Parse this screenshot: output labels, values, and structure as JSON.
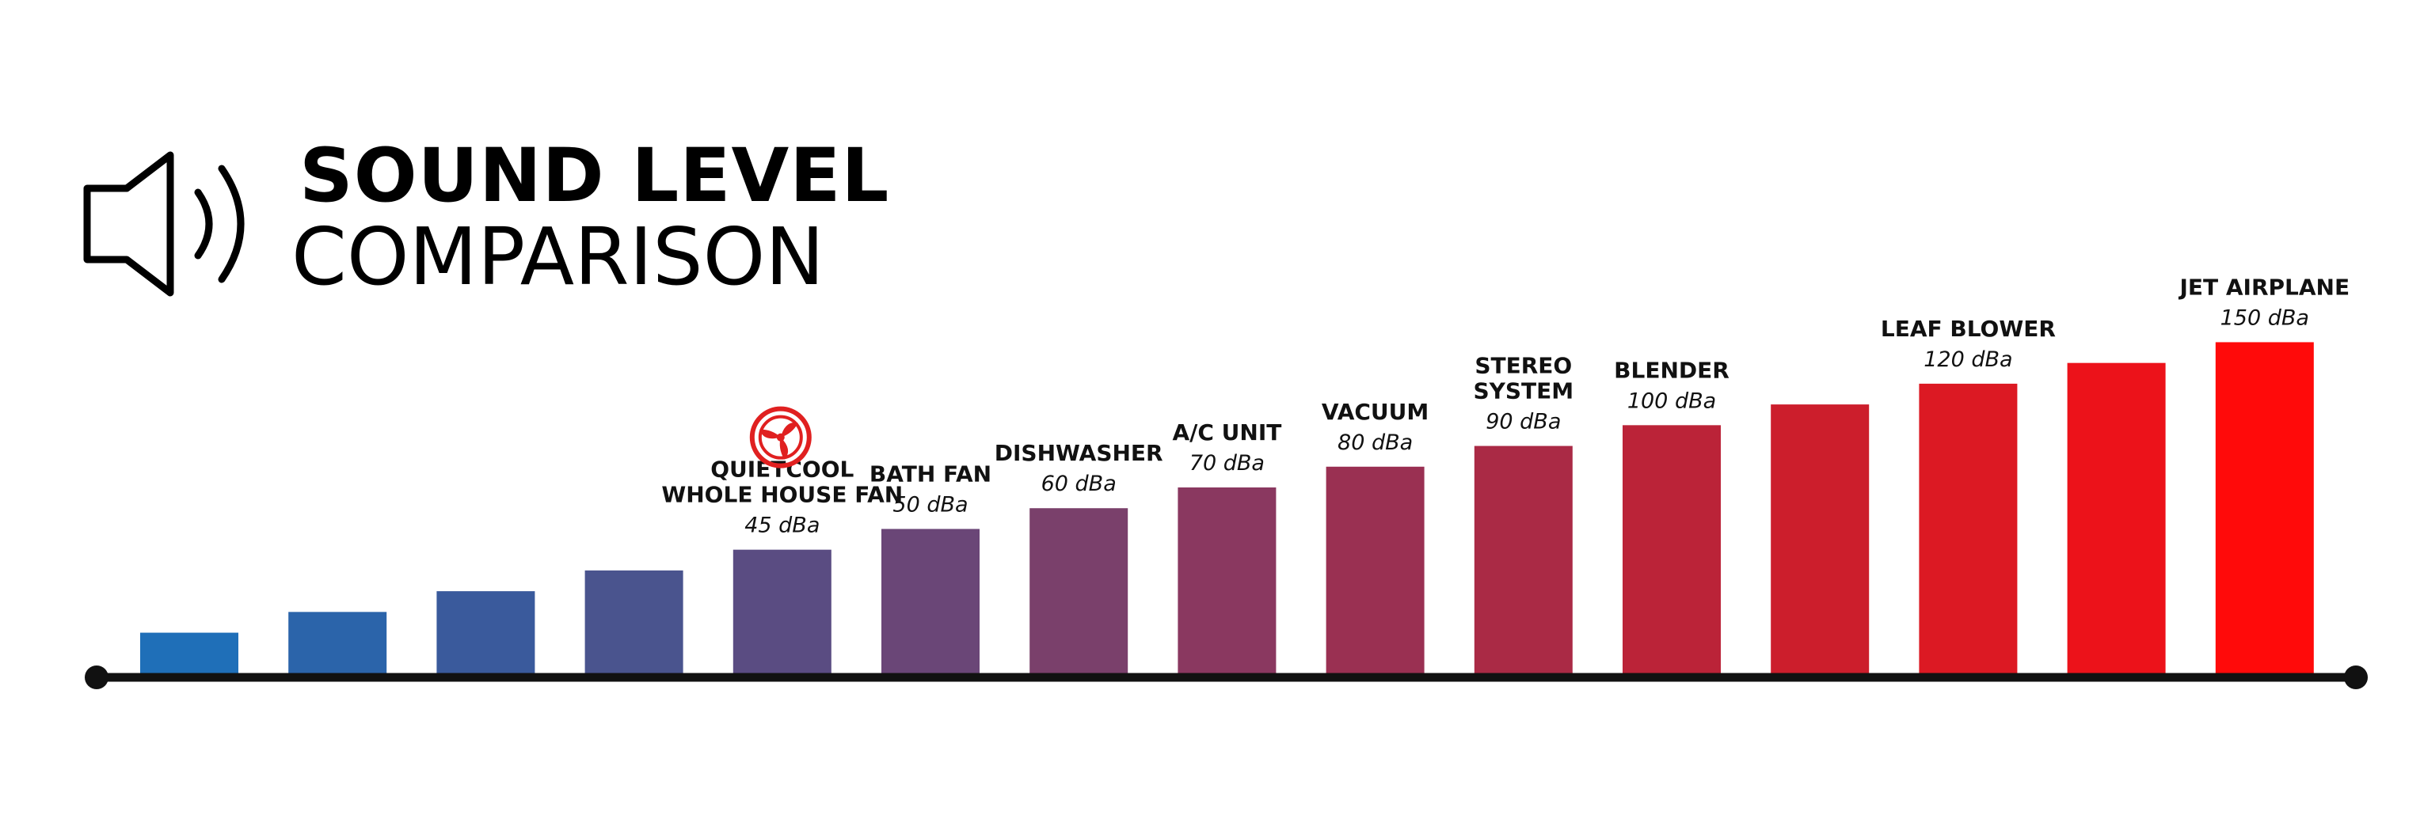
{
  "header": {
    "title_bold": "SOUND LEVEL",
    "title_light": "COMPARISON",
    "icon": "speaker-icon"
  },
  "chart_data": {
    "type": "bar",
    "title": "SOUND LEVEL COMPARISON",
    "xlabel": "",
    "ylabel": "",
    "grid": false,
    "legend": "none",
    "values": [
      10,
      15,
      20,
      25,
      30,
      35,
      40,
      45,
      50,
      55,
      60,
      65,
      70,
      75,
      80
    ],
    "categories": [
      {
        "name": "",
        "value_label": ""
      },
      {
        "name": "",
        "value_label": ""
      },
      {
        "name": "",
        "value_label": ""
      },
      {
        "name": "",
        "value_label": ""
      },
      {
        "name": "QUIETCOOL\nWHOLE HOUSE FAN",
        "value_label": "45 dBa",
        "highlight_icon": "fan-logo-icon"
      },
      {
        "name": "BATH FAN",
        "value_label": "50 dBa"
      },
      {
        "name": "DISHWASHER",
        "value_label": "60 dBa"
      },
      {
        "name": "A/C UNIT",
        "value_label": "70 dBa"
      },
      {
        "name": "VACUUM",
        "value_label": "80 dBa"
      },
      {
        "name": "STEREO\nSYSTEM",
        "value_label": "90 dBa"
      },
      {
        "name": "BLENDER",
        "value_label": "100 dBa"
      },
      {
        "name": "",
        "value_label": ""
      },
      {
        "name": "LEAF BLOWER",
        "value_label": "120 dBa"
      },
      {
        "name": "",
        "value_label": ""
      },
      {
        "name": "JET AIRPLANE",
        "value_label": "150 dBa"
      }
    ],
    "colors": [
      "#1f6fb8",
      "#2b64aa",
      "#3a5a9c",
      "#4a548e",
      "#5a4c82",
      "#6a4677",
      "#7a406b",
      "#8a3860",
      "#9a3052",
      "#aa2a45",
      "#bb2338",
      "#cc1e2c",
      "#dc1923",
      "#ec121a",
      "#ff0a0a"
    ],
    "ylim": [
      0,
      90
    ]
  }
}
